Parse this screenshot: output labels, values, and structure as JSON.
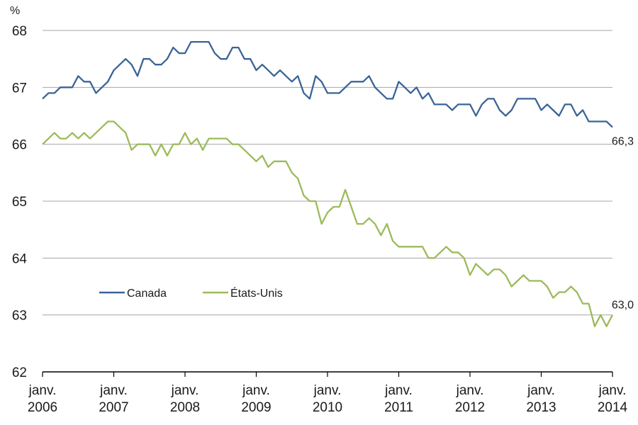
{
  "chart_data": {
    "type": "line",
    "title": "",
    "ylabel": "%",
    "xlabel": "",
    "ylim": [
      62,
      68
    ],
    "yticks": [
      "62",
      "63",
      "64",
      "65",
      "66",
      "67",
      "68"
    ],
    "grid": true,
    "legend_placement": "lower-left",
    "x_start": "janv. 2006",
    "x_step": "month",
    "xticks": [
      {
        "line1": "janv.",
        "line2": "2006"
      },
      {
        "line1": "janv.",
        "line2": "2007"
      },
      {
        "line1": "janv.",
        "line2": "2008"
      },
      {
        "line1": "janv.",
        "line2": "2009"
      },
      {
        "line1": "janv.",
        "line2": "2010"
      },
      {
        "line1": "janv.",
        "line2": "2011"
      },
      {
        "line1": "janv.",
        "line2": "2012"
      },
      {
        "line1": "janv.",
        "line2": "2013"
      },
      {
        "line1": "janv.",
        "line2": "2014"
      }
    ],
    "series": [
      {
        "name": "Canada",
        "color": "#3A6496",
        "end_label": "66,3",
        "values": [
          66.8,
          66.9,
          66.9,
          67.0,
          67.0,
          67.0,
          67.2,
          67.1,
          67.1,
          66.9,
          67.0,
          67.1,
          67.3,
          67.4,
          67.5,
          67.4,
          67.2,
          67.5,
          67.5,
          67.4,
          67.4,
          67.5,
          67.7,
          67.6,
          67.6,
          67.8,
          67.8,
          67.8,
          67.8,
          67.6,
          67.5,
          67.5,
          67.7,
          67.7,
          67.5,
          67.5,
          67.3,
          67.4,
          67.3,
          67.2,
          67.3,
          67.2,
          67.1,
          67.2,
          66.9,
          66.8,
          67.2,
          67.1,
          66.9,
          66.9,
          66.9,
          67.0,
          67.1,
          67.1,
          67.1,
          67.2,
          67.0,
          66.9,
          66.8,
          66.8,
          67.1,
          67.0,
          66.9,
          67.0,
          66.8,
          66.9,
          66.7,
          66.7,
          66.7,
          66.6,
          66.7,
          66.7,
          66.7,
          66.5,
          66.7,
          66.8,
          66.8,
          66.6,
          66.5,
          66.6,
          66.8,
          66.8,
          66.8,
          66.8,
          66.6,
          66.7,
          66.6,
          66.5,
          66.7,
          66.7,
          66.5,
          66.6,
          66.4,
          66.4,
          66.4,
          66.4,
          66.3
        ]
      },
      {
        "name": "États-Unis",
        "color": "#9BBB59",
        "end_label": "63,0",
        "values": [
          66.0,
          66.1,
          66.2,
          66.1,
          66.1,
          66.2,
          66.1,
          66.2,
          66.1,
          66.2,
          66.3,
          66.4,
          66.4,
          66.3,
          66.2,
          65.9,
          66.0,
          66.0,
          66.0,
          65.8,
          66.0,
          65.8,
          66.0,
          66.0,
          66.2,
          66.0,
          66.1,
          65.9,
          66.1,
          66.1,
          66.1,
          66.1,
          66.0,
          66.0,
          65.9,
          65.8,
          65.7,
          65.8,
          65.6,
          65.7,
          65.7,
          65.7,
          65.5,
          65.4,
          65.1,
          65.0,
          65.0,
          64.6,
          64.8,
          64.9,
          64.9,
          65.2,
          64.9,
          64.6,
          64.6,
          64.7,
          64.6,
          64.4,
          64.6,
          64.3,
          64.2,
          64.2,
          64.2,
          64.2,
          64.2,
          64.0,
          64.0,
          64.1,
          64.2,
          64.1,
          64.1,
          64.0,
          63.7,
          63.9,
          63.8,
          63.7,
          63.8,
          63.8,
          63.7,
          63.5,
          63.6,
          63.7,
          63.6,
          63.6,
          63.6,
          63.5,
          63.3,
          63.4,
          63.4,
          63.5,
          63.4,
          63.2,
          63.2,
          62.8,
          63.0,
          62.8,
          63.0
        ]
      }
    ]
  }
}
